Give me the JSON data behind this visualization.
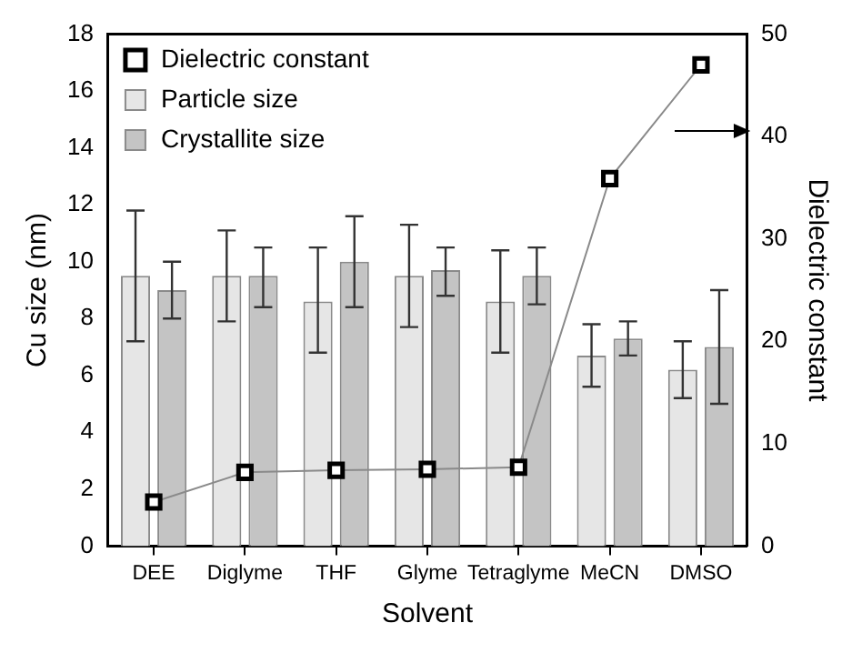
{
  "chart_data": {
    "type": "bar",
    "xlabel": "Solvent",
    "ylabel": "Cu size (nm)",
    "y2label": "Dielectric constant",
    "categories": [
      "DEE",
      "Diglyme",
      "THF",
      "Glyme",
      "Tetraglyme",
      "MeCN",
      "DMSO"
    ],
    "series": [
      {
        "name": "Dielectric constant",
        "type": "line",
        "axis": "y2",
        "color": "#000000",
        "marker": "square",
        "values": [
          4.3,
          7.2,
          7.4,
          7.5,
          7.7,
          35.9,
          47
        ]
      },
      {
        "name": "Particle size",
        "color": "#e6e6e6",
        "values": [
          9.5,
          9.5,
          8.6,
          9.5,
          8.6,
          6.7,
          6.2
        ],
        "errors": [
          [
            7.2,
            11.8
          ],
          [
            7.9,
            11.1
          ],
          [
            6.8,
            10.5
          ],
          [
            7.7,
            11.3
          ],
          [
            6.8,
            10.4
          ],
          [
            5.6,
            7.8
          ],
          [
            5.2,
            7.2
          ]
        ]
      },
      {
        "name": "Crystallite size",
        "color": "#c4c4c4",
        "values": [
          9.0,
          9.5,
          10.0,
          9.7,
          9.5,
          7.3,
          7.0
        ],
        "errors": [
          [
            8.0,
            10.0
          ],
          [
            8.4,
            10.5
          ],
          [
            8.4,
            11.6
          ],
          [
            8.8,
            10.5
          ],
          [
            8.5,
            10.5
          ],
          [
            6.7,
            7.9
          ],
          [
            5.0,
            9.0
          ]
        ]
      }
    ],
    "ylim": [
      0,
      18
    ],
    "yticks": [
      0,
      2,
      4,
      6,
      8,
      10,
      12,
      14,
      16,
      18
    ],
    "y2lim": [
      0,
      50
    ],
    "y2ticks": [
      0,
      10,
      20,
      30,
      40,
      50
    ],
    "legend": "top left",
    "grid": false
  }
}
